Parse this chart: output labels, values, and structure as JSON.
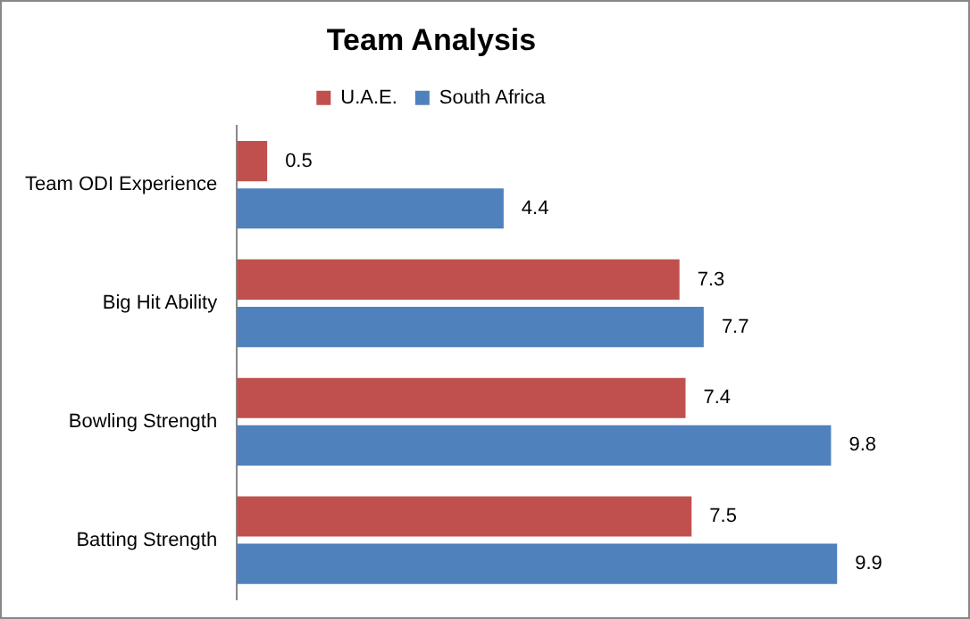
{
  "chart_data": {
    "type": "bar",
    "orientation": "horizontal",
    "title": "Team Analysis",
    "categories": [
      "Team ODI Experience",
      "Big Hit Ability",
      "Bowling Strength",
      "Batting Strength"
    ],
    "series": [
      {
        "name": "U.A.E.",
        "color": "#c0504d",
        "values": [
          0.5,
          7.3,
          7.4,
          7.5
        ]
      },
      {
        "name": "South Africa",
        "color": "#4f81bd",
        "values": [
          4.4,
          7.7,
          9.8,
          9.9
        ]
      }
    ],
    "tick_labels": "y",
    "grid": false,
    "legend": "top",
    "data_labels": true
  }
}
